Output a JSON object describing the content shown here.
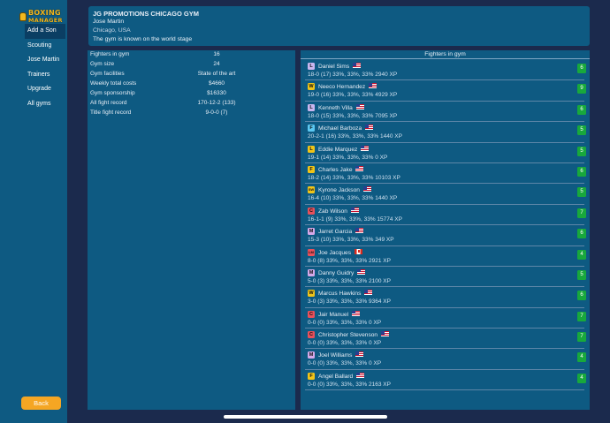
{
  "app": {
    "logo_line1": "BOXING",
    "logo_line2": "MANAGER"
  },
  "sidebar": {
    "items": [
      {
        "label": "Add a Son",
        "active": true
      },
      {
        "label": "Scouting"
      },
      {
        "label": "Jose Martin"
      },
      {
        "label": "Trainers"
      },
      {
        "label": "Upgrade"
      },
      {
        "label": "All gyms"
      }
    ],
    "back_label": "Back"
  },
  "header": {
    "title": "JG PROMOTIONS CHICAGO GYM",
    "owner": "Jose Martin",
    "location": "Chicago, USA",
    "reputation": "The gym is known on the world stage"
  },
  "stats": [
    {
      "label": "Fighters in gym",
      "value": "16"
    },
    {
      "label": "Gym size",
      "value": "24"
    },
    {
      "label": "Gym facilities",
      "value": "State of the art"
    },
    {
      "label": "Weekly total costs",
      "value": "$4660"
    },
    {
      "label": "Gym sponsorship",
      "value": "$16330"
    },
    {
      "label": "All fight record",
      "value": "170-12-2 (133)"
    },
    {
      "label": "Title fight record",
      "value": "9-0-0 (7)"
    }
  ],
  "fighters_header": "Fighters in gym",
  "fighters": [
    {
      "badge": "L",
      "badge_color": "#c9b6ef",
      "name": "Daniel Sims",
      "flag": "us",
      "record": "18-0 (17) 33%, 33%, 33%  2940 XP",
      "rating": "6"
    },
    {
      "badge": "W",
      "badge_color": "#f0c419",
      "name": "Neeco Hernandez",
      "flag": "us",
      "record": "19-0 (16) 33%, 33%, 33%  4929 XP",
      "rating": "9"
    },
    {
      "badge": "L",
      "badge_color": "#c9b6ef",
      "name": "Kenneth Villa",
      "flag": "us",
      "record": "18-0 (15) 33%, 33%, 33%  7095 XP",
      "rating": "6"
    },
    {
      "badge": "F",
      "badge_color": "#5bc8f2",
      "name": "Michael Barboza",
      "flag": "us",
      "record": "20-2-1 (16) 33%, 33%, 33%  1440 XP",
      "rating": "5"
    },
    {
      "badge": "L",
      "badge_color": "#f0c419",
      "name": "Eddie Marquez",
      "flag": "us",
      "record": "19-1 (14) 33%, 33%, 33%  0 XP",
      "rating": "5"
    },
    {
      "badge": "F",
      "badge_color": "#f0c419",
      "name": "Charles Jake",
      "flag": "us",
      "record": "18-2 (14) 33%, 33%, 33%  10103 XP",
      "rating": "6"
    },
    {
      "badge": "SW",
      "badge_color": "#f0c419",
      "name": "Kyrone Jackson",
      "flag": "us",
      "record": "16-4 (10) 33%, 33%, 33%  1440 XP",
      "rating": "5"
    },
    {
      "badge": "C",
      "badge_color": "#e8505b",
      "name": "Zab Wilson",
      "flag": "us",
      "record": "16-1-1 (9) 33%, 33%, 33%  15774 XP",
      "rating": "7"
    },
    {
      "badge": "M",
      "badge_color": "#d5a8e8",
      "name": "Jarret Garcia",
      "flag": "us",
      "record": "15-3 (10) 33%, 33%, 33%  349 XP",
      "rating": "6"
    },
    {
      "badge": "LM",
      "badge_color": "#e8505b",
      "name": "Joe Jacques",
      "flag": "ca",
      "record": "8-0 (8) 33%, 33%, 33%  2921 XP",
      "rating": "4"
    },
    {
      "badge": "M",
      "badge_color": "#d5a8e8",
      "name": "Danny Guidry",
      "flag": "us",
      "record": "5-0 (3) 33%, 33%, 33%  2100 XP",
      "rating": "5"
    },
    {
      "badge": "W",
      "badge_color": "#f0c419",
      "name": "Marcus Hawkins",
      "flag": "us",
      "record": "3-0 (3) 33%, 33%, 33%  9364 XP",
      "rating": "6"
    },
    {
      "badge": "C",
      "badge_color": "#e8505b",
      "name": "Jair Manuel",
      "flag": "us",
      "record": "0-0 (0) 33%, 33%, 33%  0 XP",
      "rating": "7"
    },
    {
      "badge": "C",
      "badge_color": "#e8505b",
      "name": "Christopher Stevenson",
      "flag": "us",
      "record": "0-0 (0) 33%, 33%, 33%  0 XP",
      "rating": "7"
    },
    {
      "badge": "M",
      "badge_color": "#d5a8e8",
      "name": "Joel Williams",
      "flag": "us",
      "record": "0-0 (0) 33%, 33%, 33%  0 XP",
      "rating": "4"
    },
    {
      "badge": "F",
      "badge_color": "#f0c419",
      "name": "Angel Ballard",
      "flag": "us",
      "record": "0-0 (0) 33%, 33%, 33%  2163 XP",
      "rating": "4"
    }
  ]
}
